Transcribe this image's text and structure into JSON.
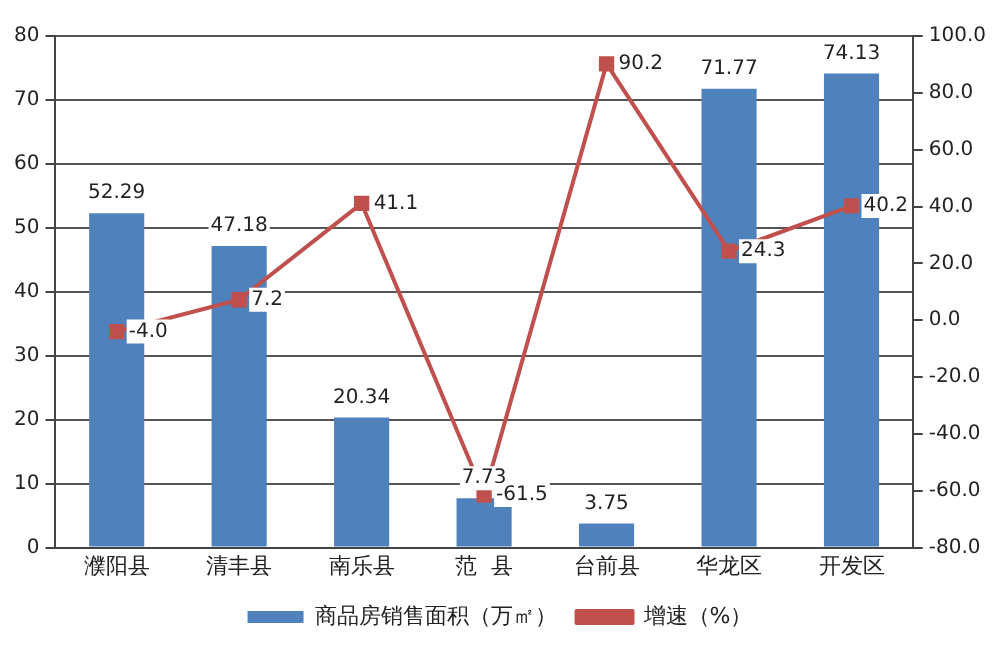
{
  "chart_data": {
    "type": "bar",
    "categories": [
      "濮阳县",
      "清丰县",
      "南乐县",
      "范  县",
      "台前县",
      "华龙区",
      "开发区"
    ],
    "series": [
      {
        "name": "商品房销售面积（万㎡）",
        "color": "#4f81bd",
        "values": [
          52.29,
          47.18,
          20.34,
          7.73,
          3.75,
          71.77,
          74.13
        ],
        "value_labels": [
          "52.29",
          "47.18",
          "20.34",
          "7.73",
          "3.75",
          "71.77",
          "74.13"
        ]
      },
      {
        "name": "增速（%）",
        "type": "line",
        "axis": "y2",
        "color": "#c0504d",
        "marker": "square",
        "values": [
          -4.0,
          7.2,
          41.1,
          -61.5,
          90.2,
          24.3,
          40.2
        ],
        "value_labels": [
          "-4.0",
          "7.2",
          "41.1",
          "-61.5",
          "90.2",
          "24.3",
          "40.2"
        ]
      }
    ],
    "ylim": [
      0,
      80
    ],
    "yticks": [
      0,
      10,
      20,
      30,
      40,
      50,
      60,
      70,
      80
    ],
    "y2lim": [
      -80,
      100
    ],
    "y2ticks": [
      {
        "value": -80,
        "label": "-80.0"
      },
      {
        "value": -60,
        "label": "-60.0"
      },
      {
        "value": -40,
        "label": "-40.0"
      },
      {
        "value": -20,
        "label": "-20.0"
      },
      {
        "value": 0,
        "label": "0.0"
      },
      {
        "value": 20,
        "label": "20.0"
      },
      {
        "value": 40,
        "label": "40.0"
      },
      {
        "value": 60,
        "label": "60.0"
      },
      {
        "value": 80,
        "label": "80.0"
      },
      {
        "value": 100,
        "label": "100.0"
      }
    ],
    "grid": "y",
    "legend": "bottom"
  }
}
